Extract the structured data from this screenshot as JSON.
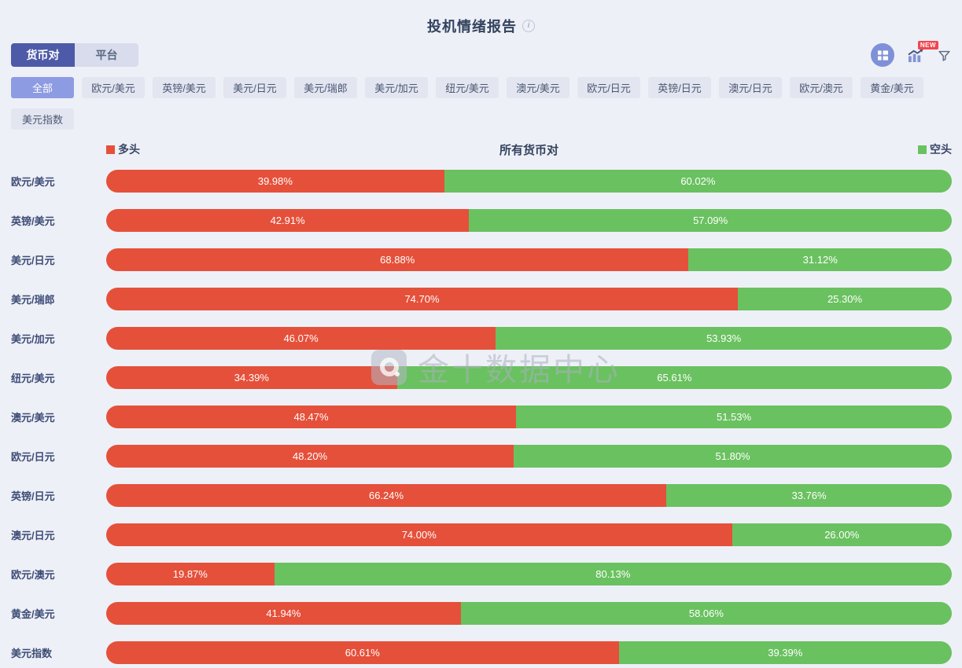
{
  "page": {
    "title": "投机情绪报告"
  },
  "tabs": [
    {
      "label": "货币对",
      "active": true
    },
    {
      "label": "平台",
      "active": false
    }
  ],
  "toolbar": {
    "new_badge": "NEW",
    "icons": [
      "layout-grid-icon",
      "trend-chart-icon",
      "filter-funnel-icon"
    ]
  },
  "filters": {
    "row1": [
      "全部",
      "欧元/美元",
      "英镑/美元",
      "美元/日元",
      "美元/瑞郎",
      "美元/加元",
      "纽元/美元",
      "澳元/美元",
      "欧元/日元",
      "英镑/日元",
      "澳元/日元",
      "欧元/澳元",
      "黄金/美元"
    ],
    "row2": [
      "美元指数"
    ],
    "active": "全部"
  },
  "watermark": {
    "text": "金十数据中心"
  },
  "chart_data": {
    "type": "bar",
    "orientation": "horizontal-stacked",
    "title": "所有货币对",
    "legend": [
      {
        "name": "多头",
        "color": "#e5503a",
        "position": "left"
      },
      {
        "name": "空头",
        "color": "#6ac160",
        "position": "right"
      }
    ],
    "value_format": "percent",
    "xlim": [
      0,
      100
    ],
    "categories": [
      "欧元/美元",
      "英镑/美元",
      "美元/日元",
      "美元/瑞郎",
      "美元/加元",
      "纽元/美元",
      "澳元/美元",
      "欧元/日元",
      "英镑/日元",
      "澳元/日元",
      "欧元/澳元",
      "黄金/美元",
      "美元指数"
    ],
    "series": [
      {
        "name": "多头",
        "color": "#e5503a",
        "values": [
          39.98,
          42.91,
          68.88,
          74.7,
          46.07,
          34.39,
          48.47,
          48.2,
          66.24,
          74.0,
          19.87,
          41.94,
          60.61
        ]
      },
      {
        "name": "空头",
        "color": "#6ac160",
        "values": [
          60.02,
          57.09,
          31.12,
          25.3,
          53.93,
          65.61,
          51.53,
          51.8,
          33.76,
          26.0,
          80.13,
          58.06,
          39.39
        ]
      }
    ]
  }
}
